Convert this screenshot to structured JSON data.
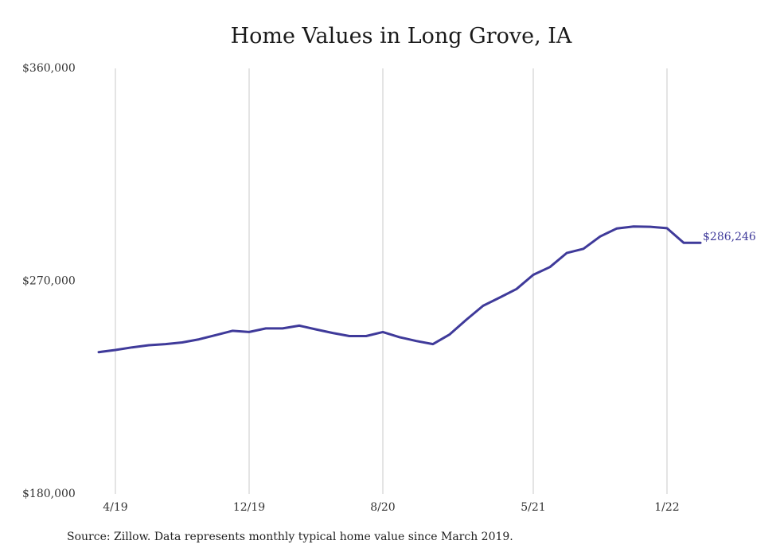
{
  "title": "Home Values in Long Grove, IA",
  "source_note": "Source: Zillow. Data represents monthly typical home value since March 2019.",
  "colors": {
    "line": "#3f3a9a",
    "grid": "#c8c8c8",
    "text": "#333333"
  },
  "chart_data": {
    "type": "line",
    "title": "Home Values in Long Grove, IA",
    "xlabel": "",
    "ylabel": "",
    "ylim": [
      180000,
      360000
    ],
    "y_ticks": [
      {
        "value": 360000,
        "label": "$360,000"
      },
      {
        "value": 270000,
        "label": "$270,000"
      },
      {
        "value": 180000,
        "label": "$180,000"
      }
    ],
    "x_ticks": [
      {
        "date": "2019-04",
        "label": "4/19"
      },
      {
        "date": "2019-12",
        "label": "12/19"
      },
      {
        "date": "2020-08",
        "label": "8/20"
      },
      {
        "date": "2021-05",
        "label": "5/21"
      },
      {
        "date": "2022-01",
        "label": "1/22"
      }
    ],
    "grid": "vertical",
    "end_label": "$286,246",
    "series": [
      {
        "x": [
          "2019-03",
          "2019-04",
          "2019-05",
          "2019-06",
          "2019-07",
          "2019-08",
          "2019-09",
          "2019-10",
          "2019-11",
          "2019-12",
          "2020-01",
          "2020-02",
          "2020-03",
          "2020-04",
          "2020-05",
          "2020-06",
          "2020-07",
          "2020-08",
          "2020-09",
          "2020-10",
          "2020-11",
          "2020-12",
          "2021-01",
          "2021-02",
          "2021-03",
          "2021-04",
          "2021-05",
          "2021-06",
          "2021-07",
          "2021-08",
          "2021-09",
          "2021-10",
          "2021-11",
          "2021-12",
          "2022-01",
          "2022-02",
          "2022-03"
        ],
        "values": [
          240000,
          240900,
          242000,
          242900,
          243400,
          244100,
          245400,
          247200,
          249000,
          248500,
          250000,
          250000,
          251200,
          249600,
          248100,
          246800,
          246800,
          248500,
          246300,
          244700,
          243400,
          247500,
          253700,
          259600,
          263100,
          266700,
          272700,
          276000,
          281900,
          283700,
          288900,
          292300,
          293100,
          293000,
          292400,
          286246,
          286246
        ]
      }
    ]
  }
}
